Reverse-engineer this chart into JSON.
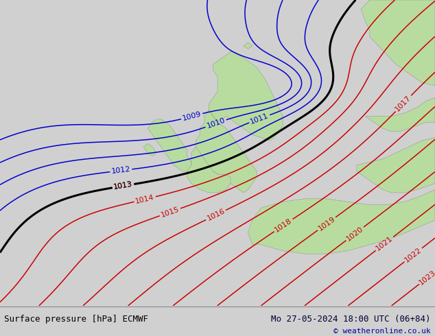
{
  "title_left": "Surface pressure [hPa] ECMWF",
  "title_right": "Mo 27-05-2024 18:00 UTC (06+84)",
  "copyright": "© weatheronline.co.uk",
  "bg_color": "#d0d0d0",
  "land_color": "#b8dca0",
  "blue_contour_color": "#0000cc",
  "red_contour_color": "#cc0000",
  "black_contour_color": "#000000",
  "font_size_label": 8,
  "font_size_title": 9,
  "blue_levels": [
    1009,
    1010,
    1011,
    1012
  ],
  "red_levels": [
    1013,
    1014,
    1015,
    1016,
    1017,
    1018,
    1019,
    1020,
    1021,
    1022,
    1023
  ],
  "black_level": 1013
}
